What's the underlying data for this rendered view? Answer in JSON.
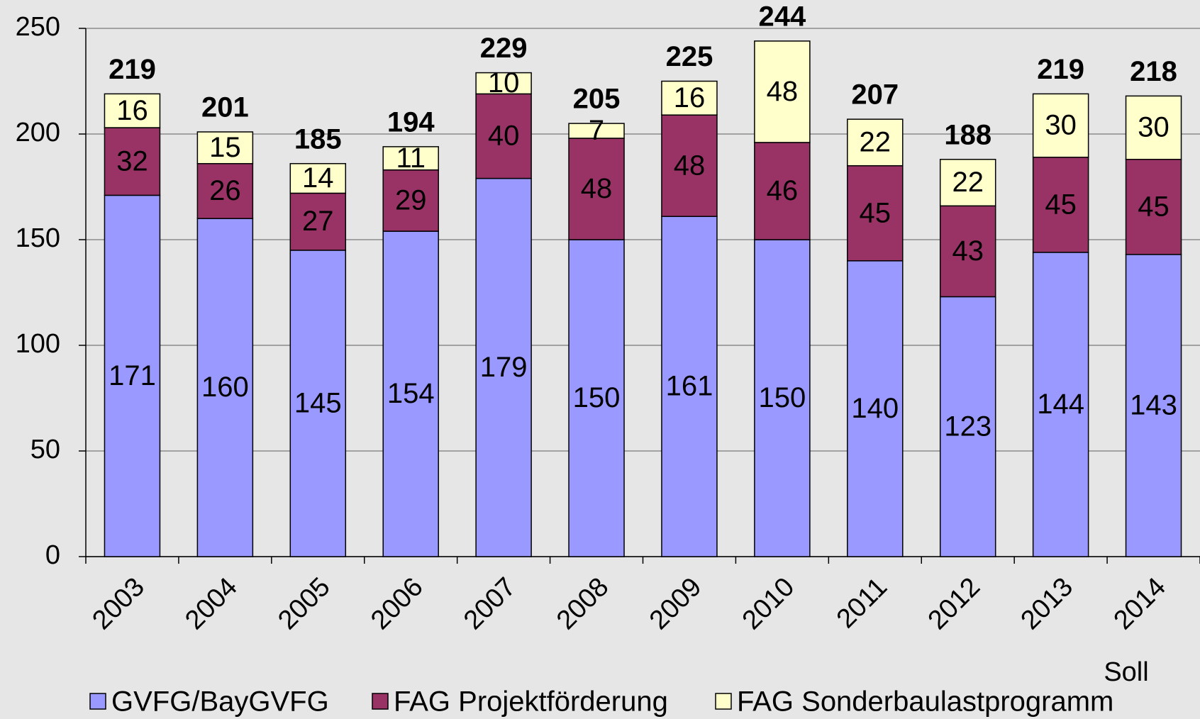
{
  "chart_data": {
    "type": "stacked_bar",
    "categories": [
      "2003",
      "2004",
      "2005",
      "2006",
      "2007",
      "2008",
      "2009",
      "2010",
      "2011",
      "2012",
      "2013",
      "2014"
    ],
    "series": [
      {
        "name": "GVFG/BayGVFG",
        "color": "#9999ff",
        "values": [
          171,
          160,
          145,
          154,
          179,
          150,
          161,
          150,
          140,
          123,
          144,
          143
        ]
      },
      {
        "name": "FAG Projektförderung",
        "color": "#993366",
        "values": [
          32,
          26,
          27,
          29,
          40,
          48,
          48,
          46,
          45,
          43,
          45,
          45
        ]
      },
      {
        "name": "FAG Sonderbaulastprogramm",
        "color": "#ffffcc",
        "values": [
          16,
          15,
          14,
          11,
          10,
          7,
          16,
          48,
          22,
          22,
          30,
          30
        ]
      }
    ],
    "totals": [
      219,
      201,
      185,
      194,
      229,
      205,
      225,
      244,
      207,
      188,
      219,
      218
    ],
    "annotations": [
      "Soll"
    ],
    "ylim": [
      0,
      250
    ],
    "yticks": [
      0,
      50,
      100,
      150,
      200,
      250
    ],
    "grid": true
  }
}
